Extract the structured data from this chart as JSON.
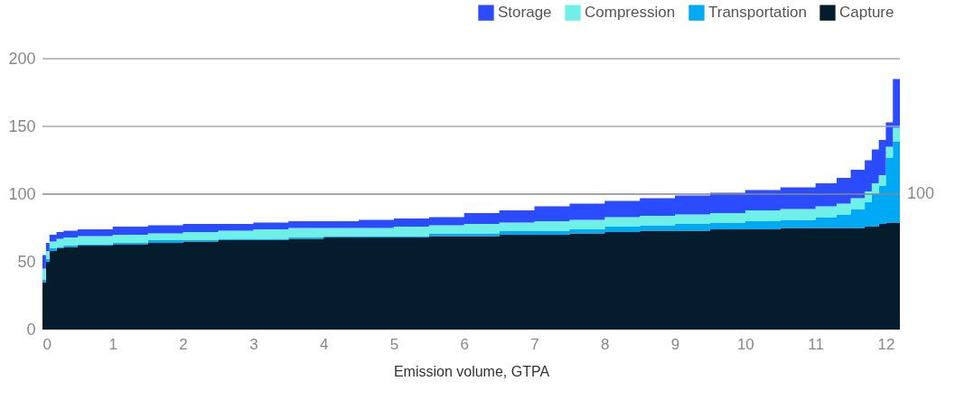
{
  "chart_data": {
    "type": "area",
    "stacked": true,
    "xlabel": "Emission volume, GTPA",
    "legend": "top right",
    "grid": false,
    "x": [
      0,
      0.05,
      0.1,
      0.2,
      0.3,
      0.5,
      1,
      1.5,
      2,
      2.5,
      3,
      3.5,
      4,
      4.5,
      5,
      5.5,
      6,
      6.5,
      7,
      7.5,
      8,
      8.5,
      9,
      9.5,
      10,
      10.5,
      11,
      11.3,
      11.5,
      11.7,
      11.8,
      11.9,
      12.0,
      12.1,
      12.2
    ],
    "xlim": [
      0,
      12.2
    ],
    "xticks": [
      0,
      1,
      2,
      3,
      4,
      5,
      6,
      7,
      8,
      9,
      10,
      11,
      12
    ],
    "ylim": [
      0,
      200
    ],
    "yticks": [
      0,
      50,
      100,
      150,
      200
    ],
    "series": [
      {
        "name": "Capture",
        "color": "#051c2c",
        "values": [
          22,
          35,
          50,
          58,
          60,
          61,
          62,
          63,
          64,
          65,
          66,
          66,
          67,
          68,
          68,
          68,
          69,
          69,
          70,
          70,
          71,
          72,
          73,
          73,
          74,
          74,
          75,
          75,
          75,
          75,
          76,
          76,
          78,
          79,
          79
        ]
      },
      {
        "name": "Transportation",
        "color": "#00a9f4",
        "values": [
          0,
          2,
          2,
          2,
          1,
          1,
          1,
          1,
          2,
          1,
          1,
          1,
          1,
          1,
          1,
          1,
          2,
          2,
          3,
          3,
          3,
          4,
          4,
          5,
          5,
          6,
          6,
          8,
          10,
          14,
          18,
          24,
          28,
          48,
          60
        ]
      },
      {
        "name": "Compression",
        "color": "#6ff0e6",
        "values": [
          8,
          8,
          6,
          5,
          6,
          6,
          6,
          6,
          5,
          6,
          6,
          7,
          7,
          6,
          6,
          7,
          6,
          7,
          6,
          7,
          7,
          7,
          7,
          7,
          7,
          8,
          8,
          8,
          8,
          8,
          8,
          8,
          8,
          8,
          10
        ]
      },
      {
        "name": "Storage",
        "color": "#2a4bff",
        "values": [
          15,
          10,
          6,
          5,
          5,
          5,
          5,
          6,
          6,
          6,
          5,
          5,
          5,
          5,
          6,
          6,
          6,
          8,
          9,
          11,
          12,
          12,
          13,
          14,
          15,
          15,
          16,
          17,
          19,
          21,
          23,
          25,
          26,
          18,
          36
        ]
      }
    ],
    "ref_lines": [
      {
        "axis": "y",
        "value": 100,
        "label": "100",
        "color": "#888888"
      },
      {
        "axis": "y",
        "value": 150,
        "label": null,
        "color": "#aaaaaa"
      },
      {
        "axis": "y",
        "value": 200,
        "label": null,
        "color": "#aaaaaa"
      }
    ]
  }
}
